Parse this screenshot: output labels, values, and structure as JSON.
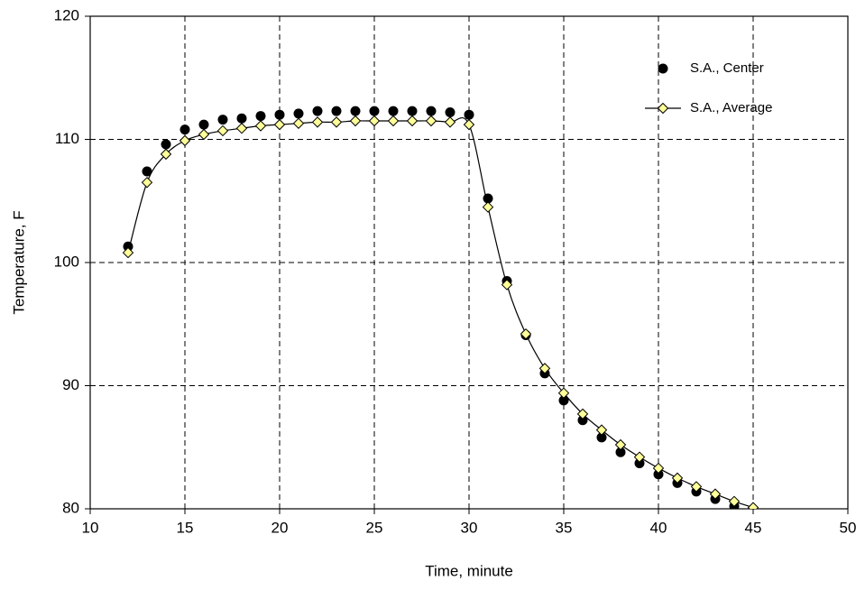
{
  "chart_data": {
    "type": "scatter",
    "x_label": "Time, minute",
    "y_label": "Temperature, F",
    "xlim": [
      10,
      50
    ],
    "xticks": [
      10,
      15,
      20,
      25,
      30,
      35,
      40,
      45,
      50
    ],
    "ylim": [
      80,
      120
    ],
    "yticks": [
      80,
      90,
      100,
      110,
      120
    ],
    "grid": true,
    "legend": "top-right",
    "series": [
      {
        "name": "S.A., Center",
        "color": "#000000",
        "marker": "circle",
        "line": false,
        "x": [
          12,
          13,
          14,
          15,
          16,
          17,
          18,
          19,
          20,
          21,
          22,
          23,
          24,
          25,
          26,
          27,
          28,
          29,
          30,
          31,
          32,
          33,
          34,
          35,
          36,
          37,
          38,
          39,
          40,
          41,
          42,
          43,
          44
        ],
        "values": [
          101.3,
          107.4,
          109.6,
          110.8,
          111.2,
          111.6,
          111.7,
          111.9,
          112.0,
          112.1,
          112.3,
          112.3,
          112.3,
          112.3,
          112.3,
          112.3,
          112.3,
          112.2,
          112.0,
          105.2,
          98.5,
          94.1,
          91.0,
          88.8,
          87.2,
          85.8,
          84.6,
          83.7,
          82.8,
          82.1,
          81.4,
          80.8,
          80.2
        ]
      },
      {
        "name": "S.A., Average",
        "color": "#ffff99",
        "marker": "diamond",
        "line": true,
        "x": [
          12,
          13,
          14,
          15,
          16,
          17,
          18,
          19,
          20,
          21,
          22,
          23,
          24,
          25,
          26,
          27,
          28,
          29,
          30,
          31,
          32,
          33,
          34,
          35,
          36,
          37,
          38,
          39,
          40,
          41,
          42,
          43,
          44,
          45
        ],
        "values": [
          100.8,
          106.5,
          108.8,
          109.9,
          110.4,
          110.7,
          110.9,
          111.1,
          111.2,
          111.3,
          111.4,
          111.4,
          111.5,
          111.5,
          111.5,
          111.5,
          111.5,
          111.4,
          111.2,
          104.5,
          98.2,
          94.2,
          91.4,
          89.4,
          87.7,
          86.4,
          85.2,
          84.2,
          83.3,
          82.5,
          81.8,
          81.2,
          80.6,
          80.1
        ]
      }
    ]
  }
}
